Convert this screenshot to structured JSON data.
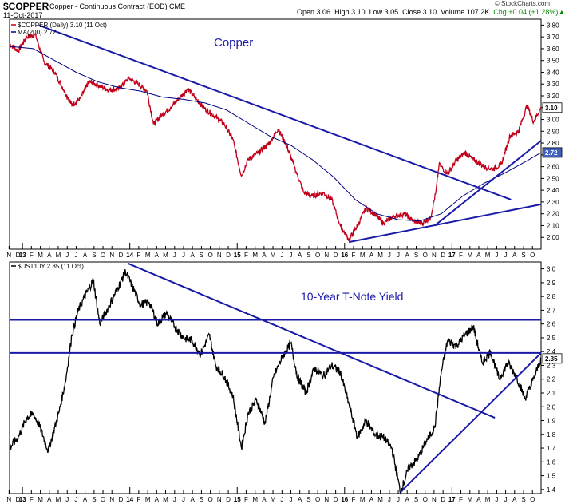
{
  "header": {
    "symbol": "$COPPER",
    "description": "Copper - Continuous Contract (EOD) CME",
    "date": "11-Oct-2017",
    "open": "Open 3.06",
    "high": "High 3.10",
    "low": "Low 3.05",
    "close": "Close 3.10",
    "volume": "Volume 107.2K",
    "change": "Chg +0.04 (+1.28%)",
    "change_arrow": "▲",
    "brand": "© StockCharts.com"
  },
  "chart_data": [
    {
      "type": "line",
      "title": "Copper",
      "legend": [
        {
          "label": "$COPPER (Daily) 3.10 (11 Oct)",
          "color": "#c0001a"
        },
        {
          "label": "MA(200) 2.72",
          "color": "#000080"
        }
      ],
      "ylim": [
        1.9,
        3.85
      ],
      "yticks": [
        2.0,
        2.1,
        2.2,
        2.3,
        2.4,
        2.5,
        2.6,
        2.7,
        2.8,
        2.9,
        3.0,
        3.1,
        3.2,
        3.3,
        3.4,
        3.5,
        3.6,
        3.7,
        3.8
      ],
      "x_range": [
        2012.88,
        2017.83
      ],
      "series": [
        {
          "name": "$COPPER",
          "color": "#c0001a",
          "points": [
            [
              2012.88,
              3.64
            ],
            [
              2012.96,
              3.58
            ],
            [
              2013.04,
              3.7
            ],
            [
              2013.12,
              3.72
            ],
            [
              2013.2,
              3.49
            ],
            [
              2013.3,
              3.4
            ],
            [
              2013.38,
              3.26
            ],
            [
              2013.46,
              3.12
            ],
            [
              2013.54,
              3.18
            ],
            [
              2013.62,
              3.32
            ],
            [
              2013.7,
              3.29
            ],
            [
              2013.8,
              3.25
            ],
            [
              2013.9,
              3.26
            ],
            [
              2013.99,
              3.35
            ],
            [
              2014.08,
              3.3
            ],
            [
              2014.16,
              3.24
            ],
            [
              2014.22,
              2.96
            ],
            [
              2014.3,
              3.04
            ],
            [
              2014.38,
              3.1
            ],
            [
              2014.46,
              3.18
            ],
            [
              2014.54,
              3.26
            ],
            [
              2014.62,
              3.17
            ],
            [
              2014.7,
              3.09
            ],
            [
              2014.8,
              3.02
            ],
            [
              2014.88,
              2.96
            ],
            [
              2014.96,
              2.83
            ],
            [
              2015.04,
              2.52
            ],
            [
              2015.1,
              2.66
            ],
            [
              2015.2,
              2.72
            ],
            [
              2015.3,
              2.8
            ],
            [
              2015.38,
              2.92
            ],
            [
              2015.46,
              2.78
            ],
            [
              2015.54,
              2.58
            ],
            [
              2015.62,
              2.38
            ],
            [
              2015.7,
              2.35
            ],
            [
              2015.8,
              2.38
            ],
            [
              2015.88,
              2.32
            ],
            [
              2015.96,
              2.1
            ],
            [
              2016.04,
              1.98
            ],
            [
              2016.12,
              2.1
            ],
            [
              2016.2,
              2.25
            ],
            [
              2016.28,
              2.2
            ],
            [
              2016.36,
              2.12
            ],
            [
              2016.46,
              2.18
            ],
            [
              2016.56,
              2.2
            ],
            [
              2016.64,
              2.14
            ],
            [
              2016.72,
              2.12
            ],
            [
              2016.8,
              2.17
            ],
            [
              2016.85,
              2.38
            ],
            [
              2016.88,
              2.62
            ],
            [
              2016.96,
              2.54
            ],
            [
              2017.04,
              2.65
            ],
            [
              2017.12,
              2.72
            ],
            [
              2017.2,
              2.66
            ],
            [
              2017.3,
              2.6
            ],
            [
              2017.38,
              2.58
            ],
            [
              2017.46,
              2.62
            ],
            [
              2017.54,
              2.86
            ],
            [
              2017.62,
              2.9
            ],
            [
              2017.7,
              3.12
            ],
            [
              2017.76,
              2.98
            ],
            [
              2017.83,
              3.1
            ]
          ]
        },
        {
          "name": "MA(200)",
          "color": "#000080",
          "points": [
            [
              2012.88,
              3.62
            ],
            [
              2013.1,
              3.6
            ],
            [
              2013.3,
              3.5
            ],
            [
              2013.5,
              3.4
            ],
            [
              2013.7,
              3.32
            ],
            [
              2013.9,
              3.27
            ],
            [
              2014.1,
              3.24
            ],
            [
              2014.3,
              3.19
            ],
            [
              2014.5,
              3.17
            ],
            [
              2014.7,
              3.14
            ],
            [
              2014.9,
              3.08
            ],
            [
              2015.1,
              2.97
            ],
            [
              2015.3,
              2.86
            ],
            [
              2015.5,
              2.78
            ],
            [
              2015.7,
              2.66
            ],
            [
              2015.9,
              2.51
            ],
            [
              2016.1,
              2.32
            ],
            [
              2016.3,
              2.2
            ],
            [
              2016.5,
              2.15
            ],
            [
              2016.7,
              2.14
            ],
            [
              2016.9,
              2.2
            ],
            [
              2017.1,
              2.35
            ],
            [
              2017.3,
              2.46
            ],
            [
              2017.5,
              2.55
            ],
            [
              2017.7,
              2.65
            ],
            [
              2017.83,
              2.72
            ]
          ]
        }
      ],
      "trendlines": [
        {
          "from": [
            2013.15,
            3.8
          ],
          "to": [
            2017.55,
            2.32
          ]
        },
        {
          "from": [
            2016.04,
            1.96
          ],
          "to": [
            2017.83,
            2.28
          ]
        },
        {
          "from": [
            2016.84,
            2.1
          ],
          "to": [
            2017.83,
            2.82
          ]
        }
      ],
      "last_value_tags": [
        {
          "value": "3.10",
          "y": 3.1,
          "color": "#ffffff"
        },
        {
          "value": "2.72",
          "y": 2.72,
          "color": "#4060c0"
        }
      ]
    },
    {
      "type": "line",
      "title": "10-Year T-Note Yield",
      "legend": [
        {
          "label": "$UST10Y 2.35 (11 Oct)",
          "color": "#000000"
        }
      ],
      "ylim": [
        1.37,
        3.05
      ],
      "yticks": [
        1.4,
        1.5,
        1.6,
        1.7,
        1.8,
        1.9,
        2.0,
        2.1,
        2.2,
        2.3,
        2.4,
        2.5,
        2.6,
        2.7,
        2.8,
        2.9,
        3.0
      ],
      "x_range": [
        2012.88,
        2017.83
      ],
      "series": [
        {
          "name": "$UST10Y",
          "color": "#000000",
          "points": [
            [
              2012.88,
              1.7
            ],
            [
              2012.96,
              1.78
            ],
            [
              2013.04,
              1.92
            ],
            [
              2013.1,
              1.95
            ],
            [
              2013.16,
              1.86
            ],
            [
              2013.24,
              1.68
            ],
            [
              2013.34,
              1.96
            ],
            [
              2013.4,
              2.18
            ],
            [
              2013.46,
              2.52
            ],
            [
              2013.52,
              2.7
            ],
            [
              2013.58,
              2.8
            ],
            [
              2013.66,
              2.92
            ],
            [
              2013.72,
              2.6
            ],
            [
              2013.8,
              2.72
            ],
            [
              2013.88,
              2.85
            ],
            [
              2013.96,
              2.98
            ],
            [
              2014.02,
              2.88
            ],
            [
              2014.1,
              2.74
            ],
            [
              2014.18,
              2.76
            ],
            [
              2014.26,
              2.6
            ],
            [
              2014.34,
              2.68
            ],
            [
              2014.42,
              2.58
            ],
            [
              2014.5,
              2.5
            ],
            [
              2014.58,
              2.48
            ],
            [
              2014.66,
              2.38
            ],
            [
              2014.74,
              2.52
            ],
            [
              2014.8,
              2.3
            ],
            [
              2014.88,
              2.22
            ],
            [
              2014.96,
              2.08
            ],
            [
              2015.04,
              1.7
            ],
            [
              2015.1,
              1.95
            ],
            [
              2015.18,
              2.05
            ],
            [
              2015.26,
              1.88
            ],
            [
              2015.34,
              2.22
            ],
            [
              2015.42,
              2.36
            ],
            [
              2015.5,
              2.46
            ],
            [
              2015.56,
              2.22
            ],
            [
              2015.64,
              2.1
            ],
            [
              2015.72,
              2.28
            ],
            [
              2015.8,
              2.22
            ],
            [
              2015.88,
              2.3
            ],
            [
              2015.96,
              2.25
            ],
            [
              2016.04,
              2.02
            ],
            [
              2016.12,
              1.78
            ],
            [
              2016.2,
              1.9
            ],
            [
              2016.28,
              1.8
            ],
            [
              2016.36,
              1.78
            ],
            [
              2016.44,
              1.7
            ],
            [
              2016.52,
              1.38
            ],
            [
              2016.6,
              1.56
            ],
            [
              2016.68,
              1.62
            ],
            [
              2016.76,
              1.75
            ],
            [
              2016.84,
              1.85
            ],
            [
              2016.9,
              2.25
            ],
            [
              2016.96,
              2.48
            ],
            [
              2017.04,
              2.44
            ],
            [
              2017.12,
              2.52
            ],
            [
              2017.2,
              2.58
            ],
            [
              2017.28,
              2.32
            ],
            [
              2017.36,
              2.4
            ],
            [
              2017.44,
              2.2
            ],
            [
              2017.52,
              2.32
            ],
            [
              2017.6,
              2.22
            ],
            [
              2017.68,
              2.06
            ],
            [
              2017.76,
              2.2
            ],
            [
              2017.83,
              2.35
            ]
          ]
        }
      ],
      "trendlines": [
        {
          "from": [
            2013.98,
            3.04
          ],
          "to": [
            2017.4,
            1.92
          ]
        },
        {
          "from": [
            2016.52,
            1.38
          ],
          "to": [
            2017.83,
            2.39
          ]
        },
        {
          "from": [
            2012.88,
            2.63
          ],
          "to": [
            2017.83,
            2.63
          ]
        },
        {
          "from": [
            2012.88,
            2.39
          ],
          "to": [
            2017.83,
            2.39
          ]
        }
      ],
      "last_value_tags": [
        {
          "value": "2.35",
          "y": 2.35,
          "color": "#ffffff"
        }
      ]
    }
  ],
  "x_axis": {
    "ticks": [
      {
        "t": 2012.875,
        "label": "N"
      },
      {
        "t": 2012.958,
        "label": "D"
      },
      {
        "t": 2013.0,
        "label": "13",
        "bold": true
      },
      {
        "t": 2013.083,
        "label": "F"
      },
      {
        "t": 2013.167,
        "label": "M"
      },
      {
        "t": 2013.25,
        "label": "A"
      },
      {
        "t": 2013.333,
        "label": "M"
      },
      {
        "t": 2013.417,
        "label": "J"
      },
      {
        "t": 2013.5,
        "label": "J"
      },
      {
        "t": 2013.583,
        "label": "A"
      },
      {
        "t": 2013.667,
        "label": "S"
      },
      {
        "t": 2013.75,
        "label": "O"
      },
      {
        "t": 2013.833,
        "label": "N"
      },
      {
        "t": 2013.917,
        "label": "D"
      },
      {
        "t": 2014.0,
        "label": "14",
        "bold": true
      },
      {
        "t": 2014.083,
        "label": "F"
      },
      {
        "t": 2014.167,
        "label": "M"
      },
      {
        "t": 2014.25,
        "label": "A"
      },
      {
        "t": 2014.333,
        "label": "M"
      },
      {
        "t": 2014.417,
        "label": "J"
      },
      {
        "t": 2014.5,
        "label": "J"
      },
      {
        "t": 2014.583,
        "label": "A"
      },
      {
        "t": 2014.667,
        "label": "S"
      },
      {
        "t": 2014.75,
        "label": "O"
      },
      {
        "t": 2014.833,
        "label": "N"
      },
      {
        "t": 2014.917,
        "label": "D"
      },
      {
        "t": 2015.0,
        "label": "15",
        "bold": true
      },
      {
        "t": 2015.083,
        "label": "F"
      },
      {
        "t": 2015.167,
        "label": "M"
      },
      {
        "t": 2015.25,
        "label": "A"
      },
      {
        "t": 2015.333,
        "label": "M"
      },
      {
        "t": 2015.417,
        "label": "J"
      },
      {
        "t": 2015.5,
        "label": "J"
      },
      {
        "t": 2015.583,
        "label": "A"
      },
      {
        "t": 2015.667,
        "label": "S"
      },
      {
        "t": 2015.75,
        "label": "O"
      },
      {
        "t": 2015.833,
        "label": "N"
      },
      {
        "t": 2015.917,
        "label": "D"
      },
      {
        "t": 2016.0,
        "label": "16",
        "bold": true
      },
      {
        "t": 2016.083,
        "label": "F"
      },
      {
        "t": 2016.167,
        "label": "M"
      },
      {
        "t": 2016.25,
        "label": "A"
      },
      {
        "t": 2016.333,
        "label": "M"
      },
      {
        "t": 2016.417,
        "label": "J"
      },
      {
        "t": 2016.5,
        "label": "J"
      },
      {
        "t": 2016.583,
        "label": "A"
      },
      {
        "t": 2016.667,
        "label": "S"
      },
      {
        "t": 2016.75,
        "label": "O"
      },
      {
        "t": 2016.833,
        "label": "N"
      },
      {
        "t": 2016.917,
        "label": "D"
      },
      {
        "t": 2017.0,
        "label": "17",
        "bold": true
      },
      {
        "t": 2017.083,
        "label": "F"
      },
      {
        "t": 2017.167,
        "label": "M"
      },
      {
        "t": 2017.25,
        "label": "A"
      },
      {
        "t": 2017.333,
        "label": "M"
      },
      {
        "t": 2017.417,
        "label": "J"
      },
      {
        "t": 2017.5,
        "label": "J"
      },
      {
        "t": 2017.583,
        "label": "A"
      },
      {
        "t": 2017.667,
        "label": "S"
      },
      {
        "t": 2017.75,
        "label": "O"
      }
    ]
  }
}
